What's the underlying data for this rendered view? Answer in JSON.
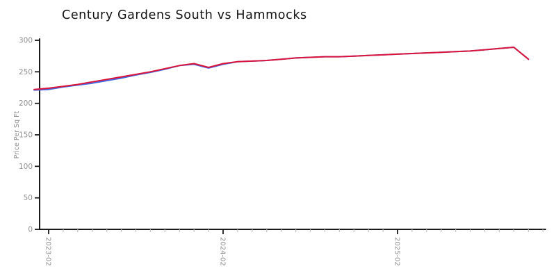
{
  "chart_data": {
    "type": "line",
    "title": "Century Gardens South vs Hammocks",
    "xlabel": "",
    "ylabel": "Price Per Sq Ft",
    "ylim": [
      0,
      300
    ],
    "yticks": [
      0,
      50,
      100,
      150,
      200,
      250,
      300
    ],
    "xticks": [
      "2023-02",
      "2024-02",
      "2025-02"
    ],
    "grid": false,
    "legend_position": "none",
    "x": [
      "2023-01",
      "2023-02",
      "2023-03",
      "2023-04",
      "2023-05",
      "2023-06",
      "2023-07",
      "2023-08",
      "2023-09",
      "2023-10",
      "2023-11",
      "2023-12",
      "2024-01",
      "2024-02",
      "2024-03",
      "2024-04",
      "2024-05",
      "2024-06",
      "2024-07",
      "2024-08",
      "2024-09",
      "2024-10",
      "2024-11",
      "2024-12",
      "2025-01",
      "2025-02",
      "2025-03",
      "2025-04",
      "2025-05",
      "2025-06",
      "2025-07",
      "2025-08",
      "2025-09",
      "2025-10",
      "2025-11"
    ],
    "series": [
      {
        "name": "Century Gardens South",
        "color": "#4169e1",
        "values": [
          221,
          222,
          226,
          229,
          232,
          236,
          240,
          245,
          249,
          254,
          260,
          262,
          256,
          262,
          266,
          267,
          268,
          270,
          272,
          273,
          274,
          274,
          275,
          276,
          277,
          278,
          279,
          280,
          281,
          282,
          283,
          285,
          287,
          289,
          270
        ]
      },
      {
        "name": "Hammocks",
        "color": "#dc143c",
        "values": [
          222,
          224,
          227,
          230,
          234,
          238,
          242,
          246,
          250,
          255,
          260,
          263,
          257,
          263,
          266,
          267,
          268,
          270,
          272,
          273,
          274,
          274,
          275,
          276,
          277,
          278,
          279,
          280,
          281,
          282,
          283,
          285,
          287,
          289,
          270
        ]
      }
    ],
    "style": {
      "background": "#ffffff",
      "title_color": "#111111",
      "axis_color": "#1a1a1a",
      "tick_label_color": "#8f8f8f",
      "minor_tick_color": "#c4c4c4"
    }
  }
}
